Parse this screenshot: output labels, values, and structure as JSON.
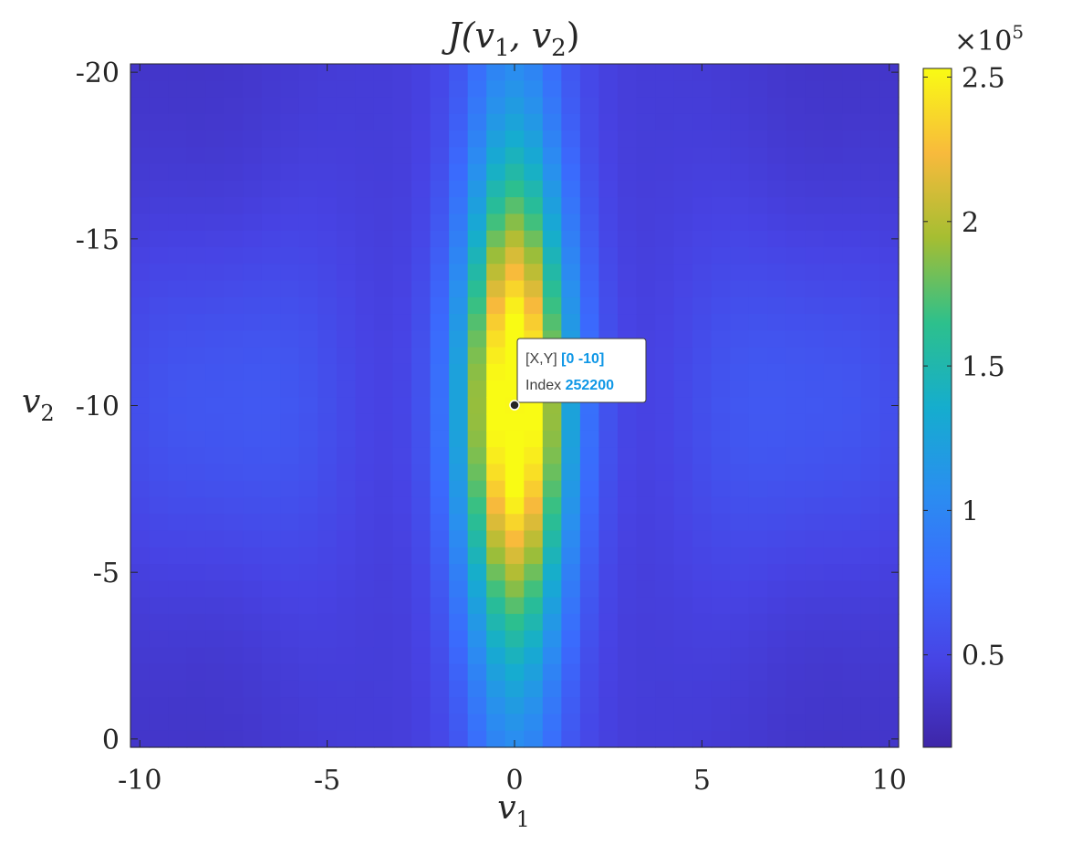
{
  "chart_data": {
    "type": "heatmap",
    "title": {
      "base": "J(v",
      "s1": "1",
      "mid": ", v",
      "s2": "2",
      "end": ")"
    },
    "xlabel": {
      "base": "v",
      "sub": "1"
    },
    "ylabel": {
      "base": "v",
      "sub": "2"
    },
    "xlim": [
      -10.25,
      10.25
    ],
    "ylim": [
      -20.25,
      0.25
    ],
    "y_reversed": true,
    "x_ticks": [
      -10,
      -5,
      0,
      5,
      10
    ],
    "x_tick_labels": [
      "-10",
      "-5",
      "0",
      "5",
      "10"
    ],
    "y_ticks": [
      -20,
      -15,
      -10,
      -5,
      0
    ],
    "y_tick_labels": [
      "-20",
      "-15",
      "-10",
      "-5",
      "0"
    ],
    "grid_step": 0.5,
    "colormap": "parula",
    "colorbar": {
      "limits": [
        18000,
        253000
      ],
      "ticks": [
        50000,
        100000,
        150000,
        200000,
        250000
      ],
      "tick_labels": [
        "0.5",
        "1",
        "1.5",
        "2",
        "2.5"
      ],
      "exponent_base": "×10",
      "exponent_power": "5"
    },
    "datatip": {
      "x": 0,
      "y": -10,
      "line1_label": "[X,Y]",
      "line1_value": "[0 -10]",
      "line2_label": "Index",
      "line2_value": "252200"
    },
    "peak": {
      "x": 0,
      "y": -10,
      "value": 252200
    }
  }
}
